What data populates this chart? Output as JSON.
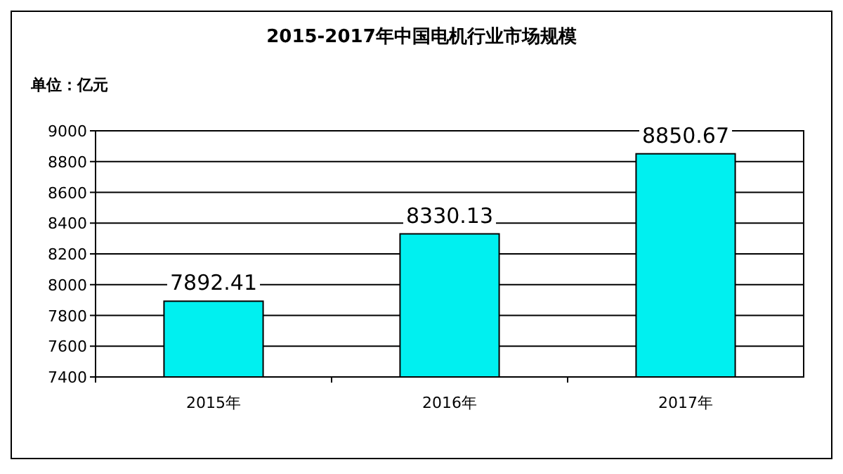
{
  "chart_data": {
    "type": "bar",
    "title": "2015-2017年中国电机行业市场规模",
    "ylabel": "单位：亿元",
    "categories": [
      "2015年",
      "2016年",
      "2017年"
    ],
    "values": [
      7892.41,
      8330.13,
      8850.67
    ],
    "color": "#00f0f0",
    "ylim": [
      7400,
      9000
    ],
    "yticks": [
      7400,
      7600,
      7800,
      8000,
      8200,
      8400,
      8600,
      8800,
      9000
    ],
    "grid": "y",
    "data_labels": true
  }
}
